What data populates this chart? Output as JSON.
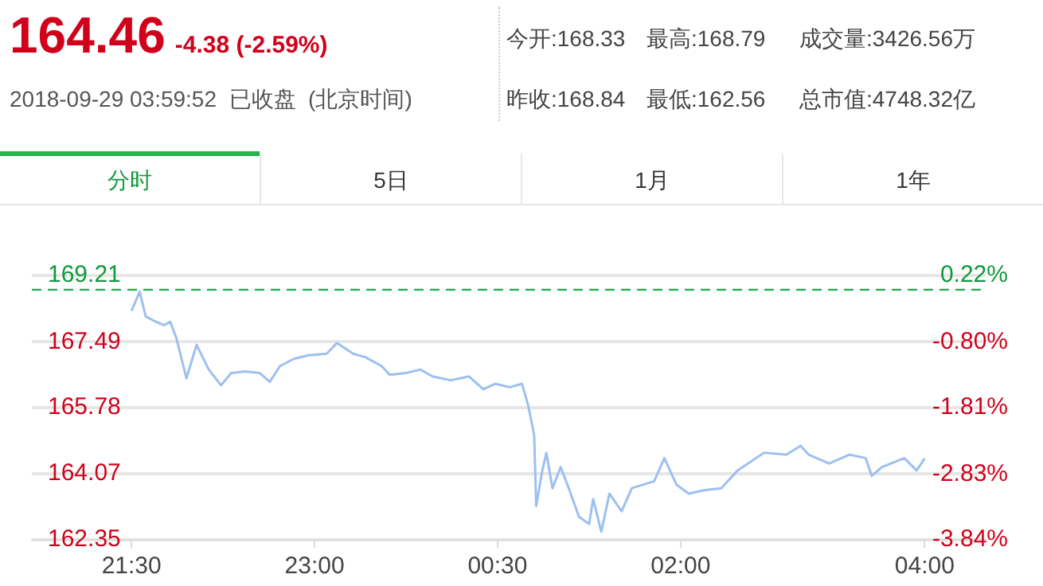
{
  "chart_data": {
    "type": "line",
    "title": "164.46",
    "subtitle": "-4.38 (-2.59%)",
    "annotations": [
      "2018-09-29 03:59:52  已收盘  (北京时间)",
      "今开:168.33",
      "最高:168.79",
      "成交量:3426.56万",
      "昨收:168.84",
      "最低:162.56",
      "总市值:4748.32亿",
      "分时",
      "5日",
      "1月",
      "1年"
    ],
    "x": [
      "2018-09-28T21:30",
      "2018-09-28T21:34",
      "2018-09-28T21:37",
      "2018-09-28T21:42",
      "2018-09-28T21:46",
      "2018-09-28T21:49",
      "2018-09-28T21:52",
      "2018-09-28T21:57",
      "2018-09-28T22:02",
      "2018-09-28T22:08",
      "2018-09-28T22:14",
      "2018-09-28T22:19",
      "2018-09-28T22:26",
      "2018-09-28T22:33",
      "2018-09-28T22:38",
      "2018-09-28T22:43",
      "2018-09-28T22:50",
      "2018-09-28T22:57",
      "2018-09-28T23:06",
      "2018-09-28T23:11",
      "2018-09-28T23:19",
      "2018-09-28T23:25",
      "2018-09-28T23:33",
      "2018-09-28T23:37",
      "2018-09-28T23:45",
      "2018-09-28T23:52",
      "2018-09-28T23:58",
      "2018-09-29T00:07",
      "2018-09-29T00:16",
      "2018-09-29T00:23",
      "2018-09-29T00:29",
      "2018-09-29T00:36",
      "2018-09-29T00:42",
      "2018-09-29T00:45",
      "2018-09-29T00:48",
      "2018-09-29T00:49",
      "2018-09-29T00:52",
      "2018-09-29T00:54",
      "2018-09-29T00:57",
      "2018-09-29T01:01",
      "2018-09-29T01:05",
      "2018-09-29T01:10",
      "2018-09-29T01:15",
      "2018-09-29T01:17",
      "2018-09-29T01:21",
      "2018-09-29T01:25",
      "2018-09-29T01:31",
      "2018-09-29T01:36",
      "2018-09-29T01:47",
      "2018-09-29T01:52",
      "2018-09-29T01:58",
      "2018-09-29T02:04",
      "2018-09-29T02:12",
      "2018-09-29T02:20",
      "2018-09-29T02:28",
      "2018-09-29T02:41",
      "2018-09-29T02:52",
      "2018-09-29T02:59",
      "2018-09-29T03:03",
      "2018-09-29T03:13",
      "2018-09-29T03:23",
      "2018-09-29T03:31",
      "2018-09-29T03:34",
      "2018-09-29T03:39",
      "2018-09-29T03:50",
      "2018-09-29T03:56",
      "2018-09-29T04:00"
    ],
    "series": [
      {
        "color": "#9dc0f0",
        "values": [
          168.29,
          168.79,
          168.15,
          168.01,
          167.92,
          168.01,
          167.6,
          166.54,
          167.41,
          166.77,
          166.36,
          166.68,
          166.72,
          166.68,
          166.45,
          166.86,
          167.05,
          167.14,
          167.18,
          167.46,
          167.18,
          167.09,
          166.86,
          166.63,
          166.68,
          166.77,
          166.59,
          166.49,
          166.59,
          166.26,
          166.4,
          166.31,
          166.4,
          165.85,
          165.07,
          163.23,
          164.15,
          164.61,
          163.69,
          164.24,
          163.69,
          162.95,
          162.76,
          163.41,
          162.56,
          163.55,
          163.09,
          163.69,
          163.87,
          164.47,
          163.78,
          163.55,
          163.64,
          163.69,
          164.15,
          164.61,
          164.56,
          164.79,
          164.56,
          164.33,
          164.56,
          164.47,
          164.01,
          164.24,
          164.47,
          164.15,
          164.46
        ]
      }
    ],
    "xlim": [
      "2018-09-28T20:41",
      "2018-09-29T04:30"
    ],
    "xticks": [
      {
        "value": "2018-09-28T21:30",
        "label": "21:30"
      },
      {
        "value": "2018-09-28T23:00",
        "label": "23:00"
      },
      {
        "value": "2018-09-29T00:30",
        "label": "00:30"
      },
      {
        "value": "2018-09-29T02:00",
        "label": "02:00"
      },
      {
        "value": "2018-09-29T04:00",
        "label": "04:00"
      }
    ],
    "ylim": [
      162.35,
      169.21
    ],
    "yticks": [
      162.35,
      164.07,
      165.78,
      167.49,
      169.21
    ],
    "y2lim": [
      -3.84,
      0.22
    ],
    "y2ticks": [
      {
        "value": -3.84,
        "label": "-3.84%"
      },
      {
        "value": -2.83,
        "label": "-2.83%"
      },
      {
        "value": -1.81,
        "label": "-1.81%"
      },
      {
        "value": -0.8,
        "label": "-0.80%"
      },
      {
        "value": 0.22,
        "label": "0.22%"
      }
    ],
    "ref_lines": [
      {
        "axis": "y",
        "value": 168.84,
        "color": "#22aa44",
        "line_style": "dashed"
      }
    ],
    "grid": "y",
    "legend": false,
    "marker": "none",
    "line_style": "solid"
  }
}
